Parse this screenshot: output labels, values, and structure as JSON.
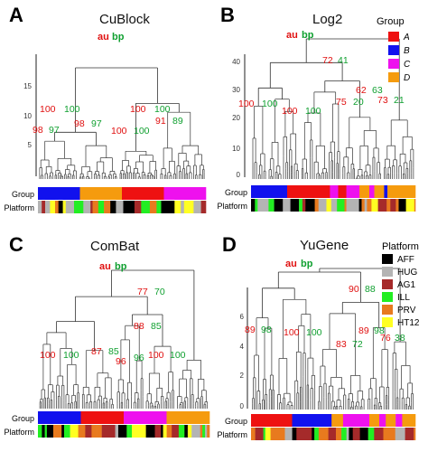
{
  "chart_data": [
    {
      "type": "dendrogram",
      "panel_letter": "A",
      "title": "CuBlock",
      "yticks": [
        "5",
        "10",
        "15"
      ],
      "root_au_label": "au",
      "root_bp_label": "bp",
      "node_labels": [
        {
          "au": "100",
          "bp": "100"
        },
        {
          "au": "100",
          "bp": "100"
        },
        {
          "au": "98",
          "bp": "97"
        },
        {
          "au": "98",
          "bp": "97"
        },
        {
          "au": "100",
          "bp": "100"
        },
        {
          "au": "91",
          "bp": "89"
        }
      ],
      "bar_labels": [
        "Group",
        "Platform"
      ]
    },
    {
      "type": "dendrogram",
      "panel_letter": "B",
      "title": "Log2",
      "yticks": [
        "0",
        "10",
        "20",
        "30",
        "40"
      ],
      "root_au_label": "au",
      "root_bp_label": "bp",
      "node_labels": [
        {
          "au": "72",
          "bp": "41"
        },
        {
          "au": "100",
          "bp": "100"
        },
        {
          "au": "100",
          "bp": "100"
        },
        {
          "au": "62",
          "bp": "63"
        },
        {
          "au": "75",
          "bp": "20"
        },
        {
          "au": "73",
          "bp": "21"
        }
      ],
      "bar_labels": [
        "Group",
        "Platform"
      ]
    },
    {
      "type": "dendrogram",
      "panel_letter": "C",
      "title": "ComBat",
      "yticks": [],
      "root_au_label": "au",
      "root_bp_label": "bp",
      "node_labels": [
        {
          "au": "77",
          "bp": "70"
        },
        {
          "au": "88",
          "bp": "85"
        },
        {
          "au": "100",
          "bp": "100"
        },
        {
          "au": "87",
          "bp": "85"
        },
        {
          "au": "96",
          "bp": "96"
        },
        {
          "au": "100",
          "bp": "100"
        }
      ],
      "bar_labels": [
        "Group",
        "Platform"
      ]
    },
    {
      "type": "dendrogram",
      "panel_letter": "D",
      "title": "YuGene",
      "yticks": [
        "0",
        "2",
        "4",
        "6"
      ],
      "root_au_label": "au",
      "root_bp_label": "bp",
      "node_labels": [
        {
          "au": "90",
          "bp": "88"
        },
        {
          "au": "89",
          "bp": "98"
        },
        {
          "au": "100",
          "bp": "100"
        },
        {
          "au": "89",
          "bp": "98"
        },
        {
          "au": "83",
          "bp": "72"
        },
        {
          "au": "76",
          "bp": "38"
        }
      ],
      "bar_labels": [
        "Group",
        "Platform"
      ]
    }
  ],
  "group_legend": {
    "title": "Group",
    "items": [
      {
        "label": "A",
        "color": "#ee1111"
      },
      {
        "label": "B",
        "color": "#1111ee"
      },
      {
        "label": "C",
        "color": "#ee11ee"
      },
      {
        "label": "D",
        "color": "#f59b0e"
      }
    ]
  },
  "platform_legend": {
    "title": "Platform",
    "items": [
      {
        "label": "AFF",
        "color": "#000000"
      },
      {
        "label": "HUG",
        "color": "#b4b4b4"
      },
      {
        "label": "AG1",
        "color": "#a52a2a"
      },
      {
        "label": "ILL",
        "color": "#22ee22"
      },
      {
        "label": "PRV",
        "color": "#e87a1e"
      },
      {
        "label": "HT12",
        "color": "#ffff22"
      }
    ]
  },
  "colors": {
    "au": "#e01010",
    "bp": "#10a030",
    "tree": "#333333"
  }
}
